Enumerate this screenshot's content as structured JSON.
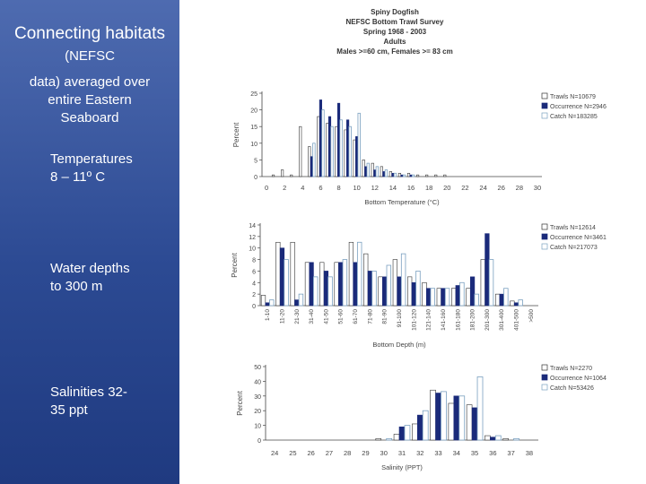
{
  "left_panel": {
    "title_main": "Connecting habitats",
    "title_small": "(NEFSC",
    "subtitle_lines": [
      "data) averaged over",
      "entire Eastern",
      "Seaboard"
    ],
    "temp_lines": [
      "Temperatures",
      "8 – 11º C"
    ],
    "depth_lines": [
      "Water depths",
      "to 300 m"
    ],
    "salinity_lines": [
      "Salinities 32-",
      "35 ppt"
    ]
  },
  "figure_title_lines": [
    "Spiny Dogfish",
    "NEFSC Bottom Trawl Survey",
    "Spring 1968 - 2003",
    "Adults",
    "Males >=60 cm, Females >= 83 cm"
  ],
  "colors": {
    "panel_bg": "#2c4a93",
    "occurrence": "#1a2a7a",
    "catch_border": "#7aa0c0"
  },
  "chart_data": [
    {
      "type": "bar",
      "xlabel": "Bottom Temperature (°C)",
      "ylabel": "Percent",
      "ylim": [
        0,
        25
      ],
      "yticks": [
        0,
        5,
        10,
        15,
        20,
        25
      ],
      "categories": [
        "0",
        "1",
        "2",
        "3",
        "4",
        "5",
        "6",
        "7",
        "8",
        "9",
        "10",
        "11",
        "12",
        "13",
        "14",
        "15",
        "16",
        "17",
        "18",
        "19",
        "20",
        "21",
        "22",
        "23",
        "24",
        "25",
        "26",
        "27",
        "28",
        "29",
        "30"
      ],
      "xtick_labels": [
        "0",
        "2",
        "4",
        "6",
        "8",
        "10",
        "12",
        "14",
        "16",
        "18",
        "20",
        "22",
        "24",
        "26",
        "28",
        "30"
      ],
      "series": [
        {
          "name": "Trawls N=10679",
          "values": [
            0,
            0.5,
            2,
            0.5,
            15,
            9,
            18,
            16,
            15,
            14,
            11,
            5,
            4,
            3,
            1.5,
            1,
            1,
            0.5,
            0.5,
            0.5,
            0.5,
            0,
            0,
            0,
            0,
            0,
            0,
            0,
            0,
            0,
            0
          ]
        },
        {
          "name": "Occurrence N=2946",
          "values": [
            0,
            0,
            0,
            0,
            0,
            6,
            23,
            18,
            22,
            17,
            12,
            3,
            2,
            1.5,
            1,
            0.5,
            0.5,
            0,
            0,
            0,
            0,
            0,
            0,
            0,
            0,
            0,
            0,
            0,
            0,
            0,
            0
          ]
        },
        {
          "name": "Catch N=183285",
          "values": [
            0,
            0,
            0,
            0,
            0,
            10,
            20,
            15,
            17,
            15,
            19,
            4,
            3,
            2,
            1,
            0.5,
            0.5,
            0,
            0,
            0,
            0,
            0,
            0,
            0,
            0,
            0,
            0,
            0,
            0,
            0,
            0
          ]
        }
      ],
      "legend": "top-right"
    },
    {
      "type": "bar",
      "xlabel": "Bottom Depth (m)",
      "ylabel": "Percent",
      "ylim": [
        0,
        14
      ],
      "yticks": [
        0,
        2,
        4,
        6,
        8,
        10,
        12,
        14
      ],
      "categories": [
        "1-10",
        "11-20",
        "21-30",
        "31-40",
        "41-50",
        "51-60",
        "61-70",
        "71-80",
        "81-90",
        "91-100",
        "101-120",
        "121-140",
        "141-160",
        "161-180",
        "181-200",
        "201-300",
        "301-400",
        "401-500",
        ">500"
      ],
      "series": [
        {
          "name": "Trawls N=12614",
          "values": [
            1.8,
            11,
            11,
            7.5,
            7.5,
            7.5,
            11,
            9,
            5,
            8,
            5,
            4,
            3,
            3,
            3,
            8,
            2,
            0.8,
            0
          ]
        },
        {
          "name": "Occurrence N=3461",
          "values": [
            0.5,
            10,
            1,
            7.5,
            6,
            7.5,
            7.5,
            6,
            5,
            5,
            4,
            3,
            3,
            3.5,
            5,
            12.5,
            2,
            0.5,
            0
          ]
        },
        {
          "name": "Catch N=217073",
          "values": [
            1,
            8,
            2,
            5,
            5,
            8,
            11,
            6,
            7,
            9,
            6,
            3,
            3,
            4,
            2,
            8,
            3,
            1,
            0
          ]
        }
      ],
      "legend": "top-right"
    },
    {
      "type": "bar",
      "xlabel": "Salinity (PPT)",
      "ylabel": "Percent",
      "ylim": [
        0,
        50
      ],
      "yticks": [
        0,
        10,
        20,
        30,
        40,
        50
      ],
      "categories": [
        "24",
        "25",
        "26",
        "27",
        "28",
        "29",
        "30",
        "31",
        "32",
        "33",
        "34",
        "35",
        "36",
        "37",
        "38"
      ],
      "series": [
        {
          "name": "Trawls N=2270",
          "values": [
            0,
            0,
            0,
            0,
            0,
            0,
            1,
            4,
            11,
            34,
            25,
            24,
            3,
            1,
            0
          ]
        },
        {
          "name": "Occurrence N=1064",
          "values": [
            0,
            0,
            0,
            0,
            0,
            0,
            0,
            9,
            17,
            32,
            30,
            22,
            2,
            0,
            0
          ]
        },
        {
          "name": "Catch N=53426",
          "values": [
            0,
            0,
            0,
            0,
            0,
            0,
            1,
            10,
            20,
            33,
            30,
            43,
            3,
            1,
            0
          ]
        }
      ],
      "legend": "top-right"
    }
  ]
}
